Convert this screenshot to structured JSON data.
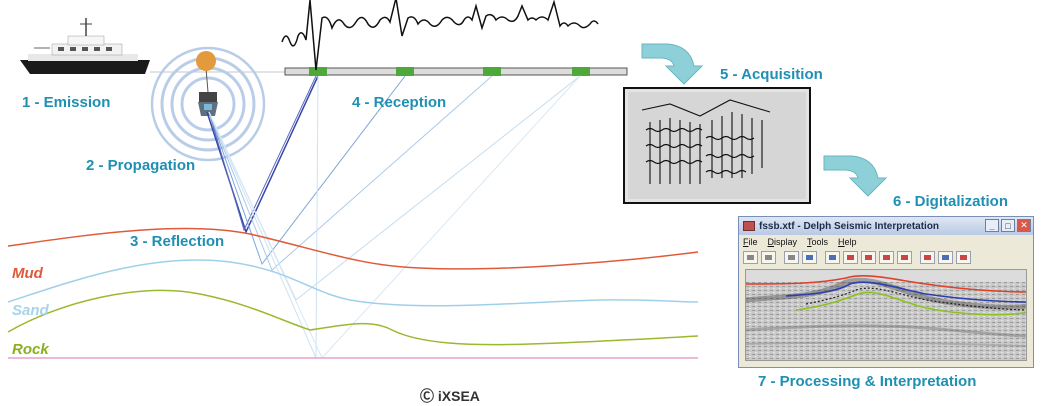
{
  "steps": {
    "emission": "1 - Emission",
    "propagation": "2 - Propagation",
    "reflection": "3 - Reflection",
    "reception": "4 - Reception",
    "acquisition": "5 - Acquisition",
    "digitalization": "6 - Digitalization",
    "processing": "7 - Processing & Interpretation"
  },
  "layers": {
    "mud": "Mud",
    "sand": "Sand",
    "rock": "Rock"
  },
  "colors": {
    "step_text": "#1f8fb3",
    "mud": "#e05a3a",
    "sand": "#9fd0ea",
    "rock": "#9ab92e",
    "seabed": "#e8a2c8",
    "arrow": "#8dd0d8",
    "ray_dark": "#3848a8",
    "ray_light": "#aed4ec"
  },
  "window": {
    "title": "fssb.xtf - Delph Seismic Interpretation",
    "menu": [
      "File",
      "Display",
      "Tools",
      "Help"
    ],
    "buttons": {
      "minimize": "_",
      "maximize": "□",
      "close": "✕"
    }
  },
  "caption": "Ⓒ iXSEA"
}
